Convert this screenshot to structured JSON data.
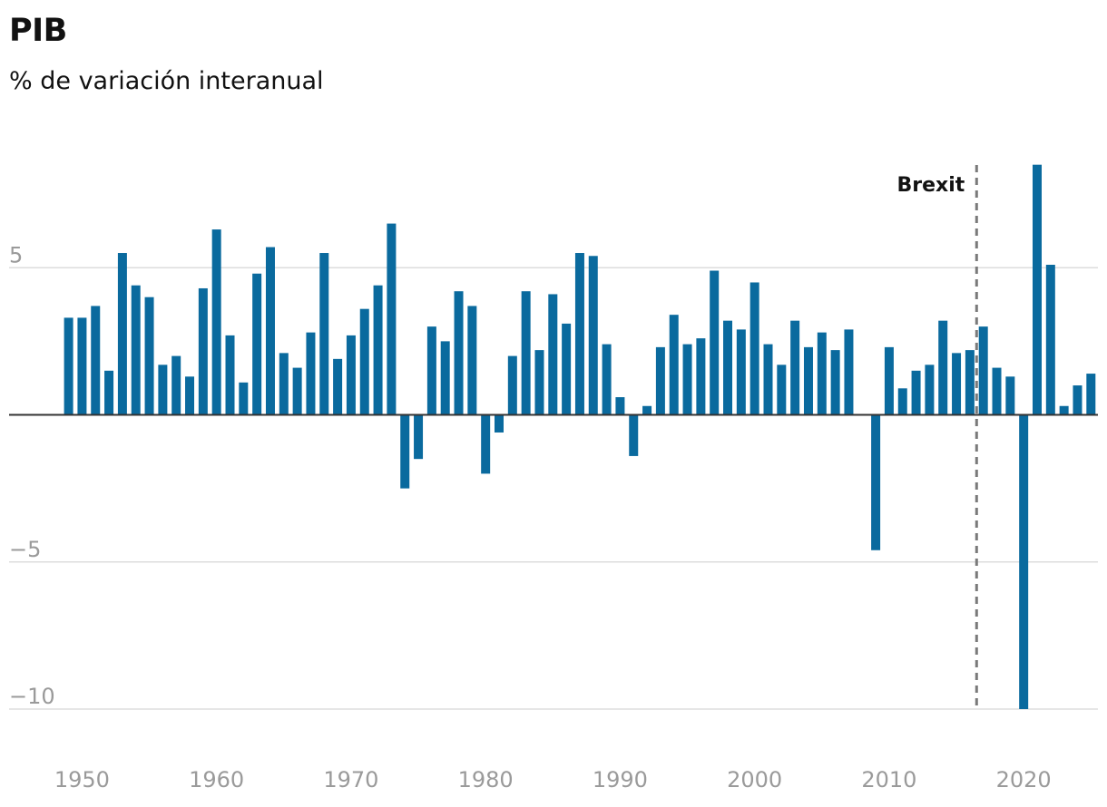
{
  "title": "PIB",
  "subtitle": "% de variación interanual",
  "colors": {
    "bar": "#0a6a9e",
    "grid": "#dddddd",
    "zero_line": "#333333",
    "annotation_line": "#7a7a7a",
    "tick_text": "#9a9a9a"
  },
  "chart_data": {
    "type": "bar",
    "title": "PIB",
    "subtitle": "% de variación interanual",
    "xlabel": "",
    "ylabel": "",
    "x_ticks": [
      "1950",
      "1960",
      "1970",
      "1980",
      "1990",
      "2000",
      "2010",
      "2020"
    ],
    "y_ticks": [
      {
        "value": 5,
        "label": "5"
      },
      {
        "value": -5,
        "label": "−5"
      },
      {
        "value": -10,
        "label": "−10"
      }
    ],
    "ylim": [
      -10,
      8.6
    ],
    "xlim": [
      1948.5,
      2025.5
    ],
    "grid": true,
    "annotations": [
      {
        "x": 2016.5,
        "label": "Brexit",
        "style": "dashed-vertical-line"
      }
    ],
    "x": [
      1949,
      1950,
      1951,
      1952,
      1953,
      1954,
      1955,
      1956,
      1957,
      1958,
      1959,
      1960,
      1961,
      1962,
      1963,
      1964,
      1965,
      1966,
      1967,
      1968,
      1969,
      1970,
      1971,
      1972,
      1973,
      1974,
      1975,
      1976,
      1977,
      1978,
      1979,
      1980,
      1981,
      1982,
      1983,
      1984,
      1985,
      1986,
      1987,
      1988,
      1989,
      1990,
      1991,
      1992,
      1993,
      1994,
      1995,
      1996,
      1997,
      1998,
      1999,
      2000,
      2001,
      2002,
      2003,
      2004,
      2005,
      2006,
      2007,
      2008,
      2009,
      2010,
      2011,
      2012,
      2013,
      2014,
      2015,
      2016,
      2017,
      2018,
      2019,
      2020,
      2021,
      2022,
      2023,
      2024,
      2025
    ],
    "values": [
      3.3,
      3.3,
      3.7,
      1.5,
      5.5,
      4.4,
      4.0,
      1.7,
      2.0,
      1.3,
      4.3,
      6.3,
      2.7,
      1.1,
      4.8,
      5.7,
      2.1,
      1.6,
      2.8,
      5.5,
      1.9,
      2.7,
      3.6,
      4.4,
      6.5,
      -2.5,
      -1.5,
      3.0,
      2.5,
      4.2,
      3.7,
      -2.0,
      -0.6,
      2.0,
      4.2,
      2.2,
      4.1,
      3.1,
      5.5,
      5.4,
      2.4,
      0.6,
      -1.4,
      0.3,
      2.3,
      3.4,
      2.4,
      2.6,
      4.9,
      3.2,
      2.9,
      4.5,
      2.4,
      1.7,
      3.2,
      2.3,
      2.8,
      2.2,
      2.9,
      0.0,
      -4.6,
      2.3,
      0.9,
      1.5,
      1.7,
      3.2,
      2.1,
      2.2,
      3.0,
      1.6,
      1.3,
      -10.0,
      8.5,
      5.1,
      0.3,
      1.0,
      1.4
    ]
  }
}
